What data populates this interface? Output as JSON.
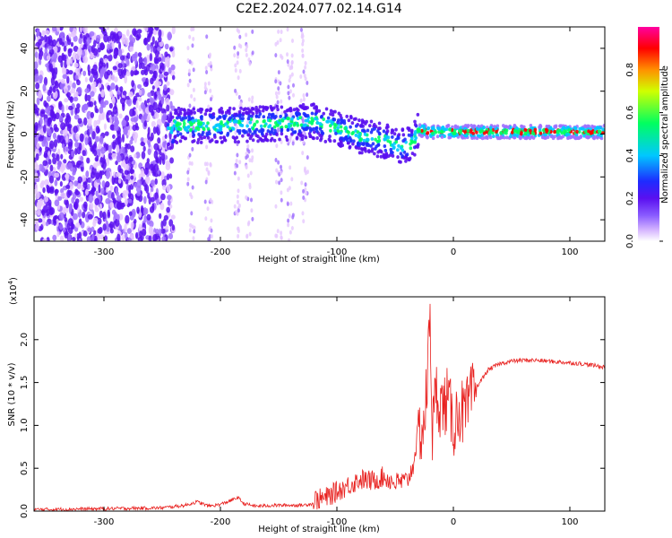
{
  "figure_title": "C2E2.2024.077.02.14.G14",
  "colors": {
    "snr_line": "#e8201e",
    "colormap": [
      "#ffffff",
      "#e6c8ff",
      "#a070ff",
      "#5a10f0",
      "#1e2cff",
      "#00c8ff",
      "#00ff60",
      "#ffff00",
      "#ff8000",
      "#ff0000",
      "#ff00a0"
    ]
  },
  "chart_data": [
    {
      "type": "heatmap",
      "xlabel": "Height of straight line (km)",
      "ylabel": "Frequency (Hz)",
      "xlim": [
        -360,
        130
      ],
      "ylim": [
        -50,
        50
      ],
      "xticks": [
        -300,
        -200,
        -100,
        0,
        100
      ],
      "yticks": [
        -40,
        -20,
        0,
        20,
        40
      ],
      "grid": false,
      "description_values": {
        "band_center_hz": [
          {
            "x": -240,
            "y": 4
          },
          {
            "x": -200,
            "y": 4
          },
          {
            "x": -150,
            "y": 5
          },
          {
            "x": -120,
            "y": 6
          },
          {
            "x": -100,
            "y": 3
          },
          {
            "x": -80,
            "y": -1
          },
          {
            "x": -60,
            "y": -3
          },
          {
            "x": -45,
            "y": -6
          },
          {
            "x": -35,
            "y": -4
          },
          {
            "x": -30,
            "y": 2
          },
          {
            "x": -20,
            "y": 1
          },
          {
            "x": 0,
            "y": 1
          },
          {
            "x": 50,
            "y": 1
          },
          {
            "x": 100,
            "y": 1
          },
          {
            "x": 130,
            "y": 1
          }
        ]
      },
      "colorbar": {
        "label": "Normalized spectral amplitude",
        "ticks": [
          0.0,
          0.2,
          0.4,
          0.6,
          0.8
        ],
        "range": [
          0,
          1
        ]
      }
    },
    {
      "type": "line",
      "xlabel": "Height of straight line (km)",
      "ylabel": "SNR (10 * v/v)",
      "y_multiplier_label": "(x10",
      "y_multiplier_exp": "4",
      "y_multiplier_close": ")",
      "xlim": [
        -360,
        130
      ],
      "ylim": [
        0,
        2.5
      ],
      "xticks": [
        -300,
        -200,
        -100,
        0,
        100
      ],
      "yticks": [
        0.0,
        0.5,
        1.0,
        1.5,
        2.0
      ],
      "grid": false,
      "series": [
        {
          "x": [
            -360,
            -300,
            -250,
            -230,
            -220,
            -210,
            -200,
            -190,
            -185,
            -180,
            -170,
            -150,
            -130,
            -110,
            -100,
            -90,
            -80,
            -70,
            -60,
            -50,
            -40,
            -35,
            -30,
            -25,
            -22,
            -20,
            -18,
            -15,
            -10,
            -5,
            0,
            5,
            10,
            15,
            20,
            25,
            30,
            40,
            50,
            60,
            70,
            80,
            90,
            100,
            110,
            120,
            130
          ],
          "y": [
            0.01,
            0.02,
            0.03,
            0.06,
            0.1,
            0.05,
            0.07,
            0.12,
            0.15,
            0.08,
            0.05,
            0.06,
            0.06,
            0.1,
            0.18,
            0.25,
            0.32,
            0.3,
            0.35,
            0.28,
            0.3,
            0.45,
            0.9,
            1.0,
            1.6,
            2.4,
            0.9,
            1.4,
            1.2,
            1.3,
            1.0,
            1.2,
            1.1,
            1.3,
            1.45,
            1.55,
            1.65,
            1.72,
            1.75,
            1.76,
            1.76,
            1.75,
            1.74,
            1.73,
            1.72,
            1.7,
            1.68
          ]
        }
      ]
    }
  ]
}
